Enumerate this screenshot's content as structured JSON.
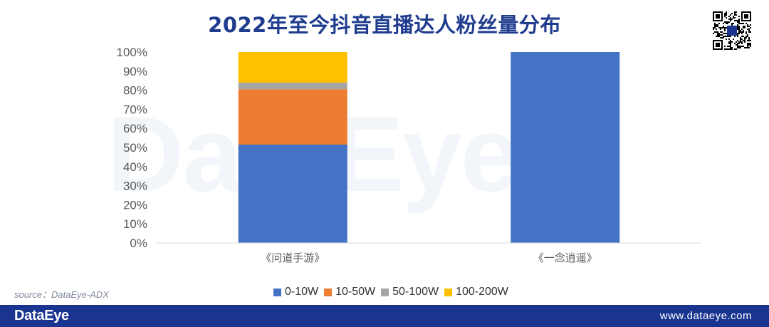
{
  "title": "2022年至今抖音直播达人粉丝量分布",
  "watermark": "DataEye",
  "source": "source：DataEye-ADX",
  "footer": {
    "brand": "DataEye",
    "url": "www.dataeye.com"
  },
  "icons": {
    "qr": "qr-code-icon"
  },
  "colors": {
    "title": "#1f3c8f",
    "footer": "#1a3590"
  },
  "chart_data": {
    "type": "bar",
    "stacked": true,
    "percent": true,
    "categories": [
      "《问道手游》",
      "《一念逍遥》"
    ],
    "series": [
      {
        "name": "0-10W",
        "color": "#4472c4",
        "values": [
          51.5,
          100
        ]
      },
      {
        "name": "10-50W",
        "color": "#ed7d31",
        "values": [
          29,
          0
        ]
      },
      {
        "name": "50-100W",
        "color": "#a5a5a5",
        "values": [
          3.5,
          0
        ]
      },
      {
        "name": "100-200W",
        "color": "#ffc000",
        "values": [
          16,
          0
        ]
      }
    ],
    "yticks": [
      "0%",
      "10%",
      "20%",
      "30%",
      "40%",
      "50%",
      "60%",
      "70%",
      "80%",
      "90%",
      "100%"
    ],
    "ylim": [
      0,
      100
    ],
    "grid": false,
    "legend_position": "bottom"
  }
}
